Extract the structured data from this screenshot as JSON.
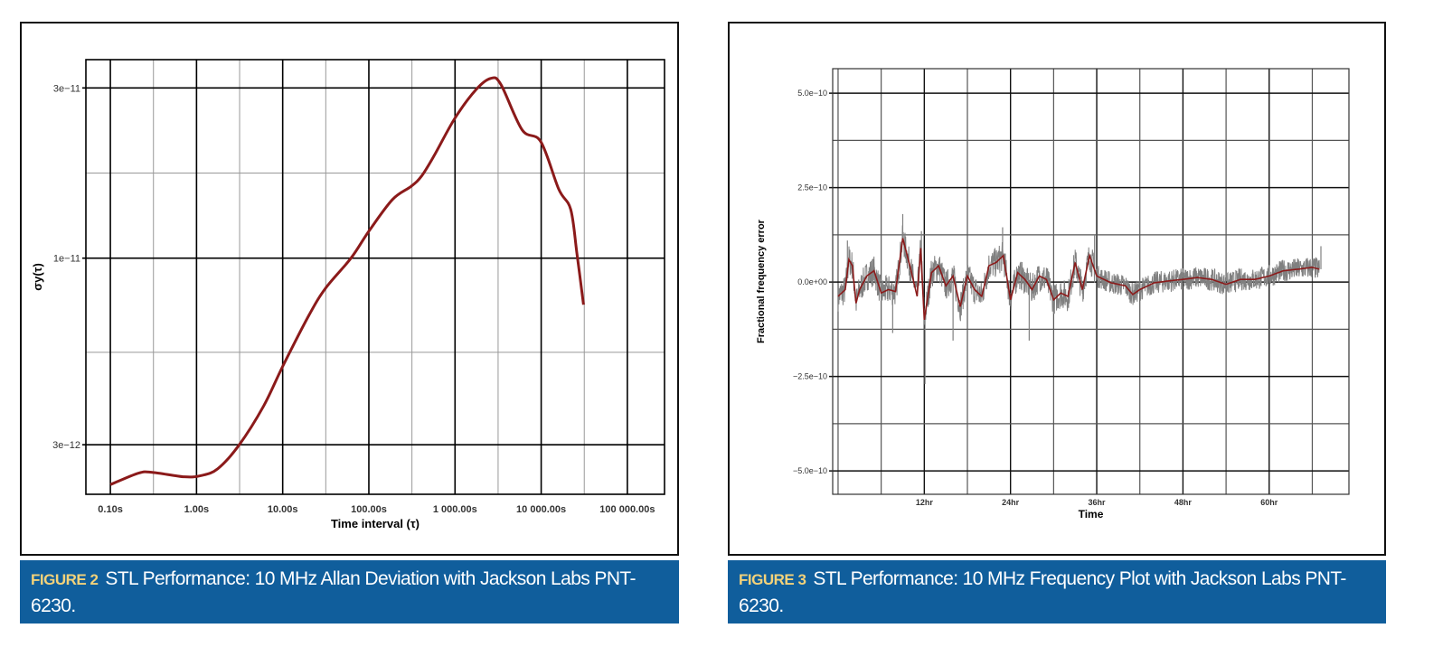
{
  "figures": [
    {
      "label": "FIGURE 2",
      "caption": "STL Performance: 10 MHz Allan Deviation with Jackson Labs PNT-6230."
    },
    {
      "label": "FIGURE 3",
      "caption": "STL Performance: 10 MHz Frequency Plot with Jackson Labs PNT-6230."
    }
  ],
  "colors": {
    "caption_bg": "#105e9c",
    "figure_label": "#f3d27a",
    "curve": "#8b1a1a",
    "raw": "#808080"
  },
  "chart_data": [
    {
      "type": "line",
      "xlabel": "Time interval (τ)",
      "ylabel": "σy(τ)",
      "xscale": "log",
      "yscale": "log",
      "xlim": [
        0.052,
        270000
      ],
      "ylim": [
        2.18e-12,
        3.6e-11
      ],
      "grid": true,
      "xticks": [
        0.1,
        1,
        10,
        100,
        1000,
        10000,
        100000
      ],
      "xtick_labels": [
        "0.10s",
        "1.00s",
        "10.00s",
        "100.00s",
        "1 000.00s",
        "10 000.00s",
        "100 000.00s"
      ],
      "yticks": [
        3e-12,
        1e-11,
        3e-11
      ],
      "ytick_labels": [
        "3e−12",
        "1e−11",
        "3e−11"
      ],
      "series": [
        {
          "x": [
            0.1,
            0.213,
            0.314,
            0.72,
            1.13,
            1.76,
            3.1,
            6.0,
            10.1,
            20.3,
            31.7,
            62,
            100,
            188,
            310,
            410,
            574,
            1000,
            1760,
            2600,
            3400,
            6000,
            9900,
            16000,
            22000,
            26000,
            31000
          ],
          "y": [
            2.32e-12,
            2.5e-12,
            2.51e-12,
            2.44e-12,
            2.46e-12,
            2.57e-12,
            2.99e-12,
            3.85e-12,
            5e-12,
            6.94e-12,
            8.26e-12,
            1e-11,
            1.19e-11,
            1.46e-11,
            1.59e-11,
            1.7e-11,
            1.94e-11,
            2.47e-11,
            2.97e-11,
            3.19e-11,
            3.07e-11,
            2.29e-11,
            2.12e-11,
            1.56e-11,
            1.37e-11,
            1.03e-11,
            7.41e-12
          ]
        }
      ]
    },
    {
      "type": "line",
      "xlabel": "Time",
      "ylabel": "Fractional frequency error",
      "x_units": "hr",
      "xlim": [
        -0.75,
        71.1
      ],
      "ylim": [
        -5.62e-10,
        5.65e-10
      ],
      "grid": true,
      "xticks": [
        12,
        24,
        36,
        48,
        60
      ],
      "xtick_labels": [
        "12hr",
        "24hr",
        "36hr",
        "48hr",
        "60hr"
      ],
      "yticks": [
        5e-10,
        2.5e-10,
        0,
        -2.5e-10,
        -5e-10
      ],
      "ytick_labels": [
        "5.0e−10",
        "2.5e−10",
        "0.0e+00",
        "−2.5e−10",
        "−5.0e−10"
      ],
      "series": [
        {
          "role": "smoothed",
          "x": [
            0,
            1,
            1.5,
            2,
            2.5,
            3,
            4,
            5,
            6,
            7,
            8,
            9,
            10,
            11,
            11.5,
            12,
            13,
            14,
            15,
            16,
            17,
            18,
            19,
            20,
            21,
            22,
            23,
            24,
            25,
            26,
            27,
            28,
            29,
            30,
            31,
            32,
            33,
            34,
            35,
            36,
            37,
            38,
            40,
            41,
            42,
            44,
            46,
            48,
            50,
            52,
            54,
            56,
            58,
            60,
            62,
            64,
            66,
            67
          ],
          "y_e10": [
            -0.38,
            -0.2,
            0.6,
            0.43,
            -0.56,
            -0.2,
            0.16,
            0.3,
            -0.29,
            -0.2,
            -0.25,
            1.16,
            0.43,
            -0.38,
            0.9,
            -1.0,
            0.25,
            0.43,
            -0.1,
            0.16,
            -0.65,
            0.16,
            -0.2,
            -0.38,
            0.43,
            0.52,
            0.7,
            -0.47,
            0.25,
            0.07,
            -0.2,
            0.16,
            0.07,
            -0.47,
            -0.29,
            -0.38,
            0.52,
            -0.2,
            0.7,
            0.16,
            0.07,
            -0.02,
            -0.1,
            -0.33,
            -0.2,
            -0.02,
            0.03,
            0.07,
            0.12,
            0.07,
            -0.06,
            0.07,
            0.07,
            0.16,
            0.3,
            0.34,
            0.39,
            0.34
          ]
        },
        {
          "role": "raw",
          "band_halfwidth_e10_before_36hr": 0.4,
          "band_halfwidth_e10_after_36hr": 0.3,
          "spikes_e10": [
            {
              "x": 1.3,
              "y": 1.1
            },
            {
              "x": 7.6,
              "y": -1.35
            },
            {
              "x": 9.0,
              "y": 1.8
            },
            {
              "x": 11.6,
              "y": 1.35
            },
            {
              "x": 12.1,
              "y": -2.7
            },
            {
              "x": 16.0,
              "y": -1.55
            },
            {
              "x": 22.9,
              "y": 1.45
            },
            {
              "x": 26.6,
              "y": -1.55
            },
            {
              "x": 35.7,
              "y": 1.25
            },
            {
              "x": 67.2,
              "y": 0.95
            }
          ]
        }
      ]
    }
  ]
}
